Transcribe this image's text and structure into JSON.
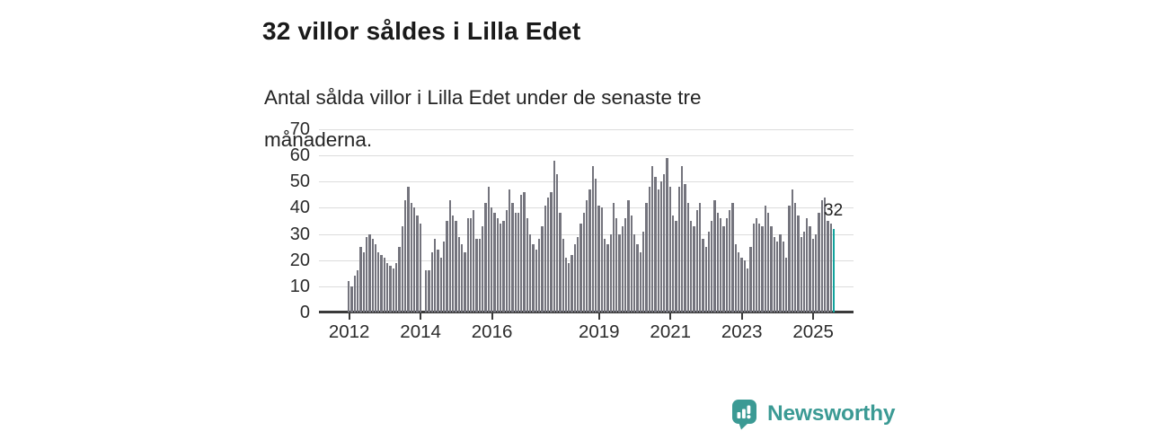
{
  "header": {
    "title": "32 villor såldes i Lilla Edet",
    "subtitle": "Antal sålda villor i Lilla Edet under de senaste tre månaderna."
  },
  "branding": {
    "logo_text": "Newsworthy",
    "brand_color": "#3b9a94"
  },
  "chart_data": {
    "type": "bar",
    "title": "32 villor såldes i Lilla Edet",
    "subtitle": "Antal sålda villor i Lilla Edet under de senaste tre månaderna.",
    "frequency": "monthly",
    "start_month": "2012-01",
    "end_month": "2025-08",
    "ylim": [
      0,
      70
    ],
    "y_ticks": [
      0,
      10,
      20,
      30,
      40,
      50,
      60,
      70
    ],
    "grid": "horizontal",
    "bar_color": "#74747d",
    "highlight_color": "#11a29c",
    "highlight_last": true,
    "highlight_value": 32,
    "highlight_label": "32",
    "x_ticks": [
      {
        "label": "2012",
        "month_index": 0
      },
      {
        "label": "2014",
        "month_index": 24
      },
      {
        "label": "2016",
        "month_index": 48
      },
      {
        "label": "2019",
        "month_index": 84
      },
      {
        "label": "2021",
        "month_index": 108
      },
      {
        "label": "2023",
        "month_index": 132
      },
      {
        "label": "2025",
        "month_index": 156
      }
    ],
    "values": [
      12,
      10,
      14,
      16,
      25,
      23,
      29,
      30,
      28,
      26,
      23,
      22,
      21,
      19,
      18,
      17,
      19,
      25,
      33,
      43,
      48,
      42,
      40,
      37,
      34,
      0,
      16,
      16,
      23,
      28,
      24,
      21,
      27,
      35,
      43,
      37,
      35,
      29,
      26,
      23,
      36,
      36,
      39,
      28,
      28,
      33,
      42,
      48,
      40,
      38,
      36,
      34,
      35,
      39,
      47,
      42,
      38,
      38,
      45,
      46,
      36,
      30,
      26,
      24,
      28,
      33,
      41,
      44,
      46,
      58,
      53,
      38,
      28,
      21,
      19,
      22,
      26,
      29,
      34,
      38,
      43,
      47,
      56,
      51,
      41,
      40,
      28,
      26,
      30,
      42,
      36,
      30,
      33,
      36,
      43,
      37,
      30,
      26,
      23,
      31,
      42,
      48,
      56,
      52,
      47,
      50,
      53,
      59,
      48,
      37,
      35,
      48,
      56,
      49,
      42,
      35,
      33,
      39,
      42,
      28,
      25,
      31,
      35,
      43,
      38,
      36,
      33,
      36,
      39,
      42,
      26,
      23,
      21,
      20,
      17,
      25,
      34,
      36,
      34,
      33,
      41,
      38,
      33,
      29,
      27,
      30,
      27,
      21,
      41,
      47,
      42,
      37,
      29,
      31,
      36,
      33,
      28,
      30,
      38,
      43,
      44,
      35,
      34,
      32
    ]
  }
}
